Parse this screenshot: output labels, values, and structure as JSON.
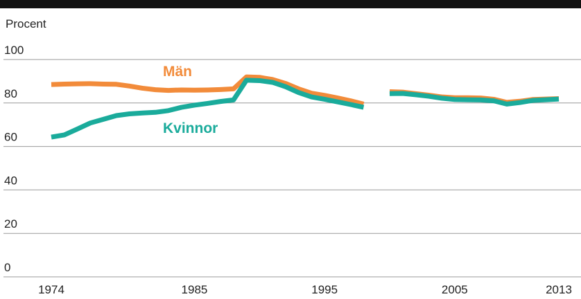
{
  "chart_data": {
    "type": "line",
    "y_axis_label": "Procent",
    "x": [
      1974,
      1975,
      1976,
      1977,
      1978,
      1979,
      1980,
      1981,
      1982,
      1983,
      1984,
      1985,
      1986,
      1987,
      1988,
      1989,
      1990,
      1991,
      1992,
      1993,
      1994,
      1995,
      1996,
      1997,
      1998,
      1999,
      2000,
      2001,
      2002,
      2003,
      2004,
      2005,
      2006,
      2007,
      2008,
      2009,
      2010,
      2011,
      2012,
      2013
    ],
    "series": [
      {
        "name": "Män",
        "color": "#f28b3a",
        "values": [
          88.5,
          88.7,
          88.8,
          88.9,
          88.7,
          88.6,
          87.8,
          86.8,
          86.1,
          85.8,
          86,
          85.9,
          86,
          86.2,
          86.5,
          92,
          91.8,
          90.8,
          89,
          86.5,
          84.5,
          83.5,
          82.3,
          81,
          79.5,
          null,
          85.2,
          85,
          84.3,
          83.6,
          82.8,
          82.4,
          82.4,
          82.3,
          81.7,
          80.3,
          80.8,
          81.6,
          81.8,
          82
        ]
      },
      {
        "name": "Kvinnor",
        "color": "#1aab9b",
        "values": [
          64.3,
          65.3,
          68,
          70.8,
          72.5,
          74.2,
          75,
          75.4,
          75.7,
          76.5,
          78,
          79,
          79.8,
          80.7,
          81.4,
          90.5,
          90.3,
          89.5,
          87.5,
          84.8,
          82.8,
          81.7,
          80.5,
          79.3,
          78,
          null,
          84.3,
          84.4,
          83.8,
          83.1,
          82.2,
          81.6,
          81.5,
          81.4,
          81,
          79.5,
          80.2,
          81.2,
          81.5,
          81.8
        ]
      }
    ],
    "xlim": [
      1974,
      2013
    ],
    "xticks": [
      1974,
      1985,
      1995,
      2005,
      2013
    ],
    "ylim": [
      0,
      100
    ],
    "yticks": [
      0,
      20,
      40,
      60,
      80,
      100
    ],
    "grid": true
  }
}
